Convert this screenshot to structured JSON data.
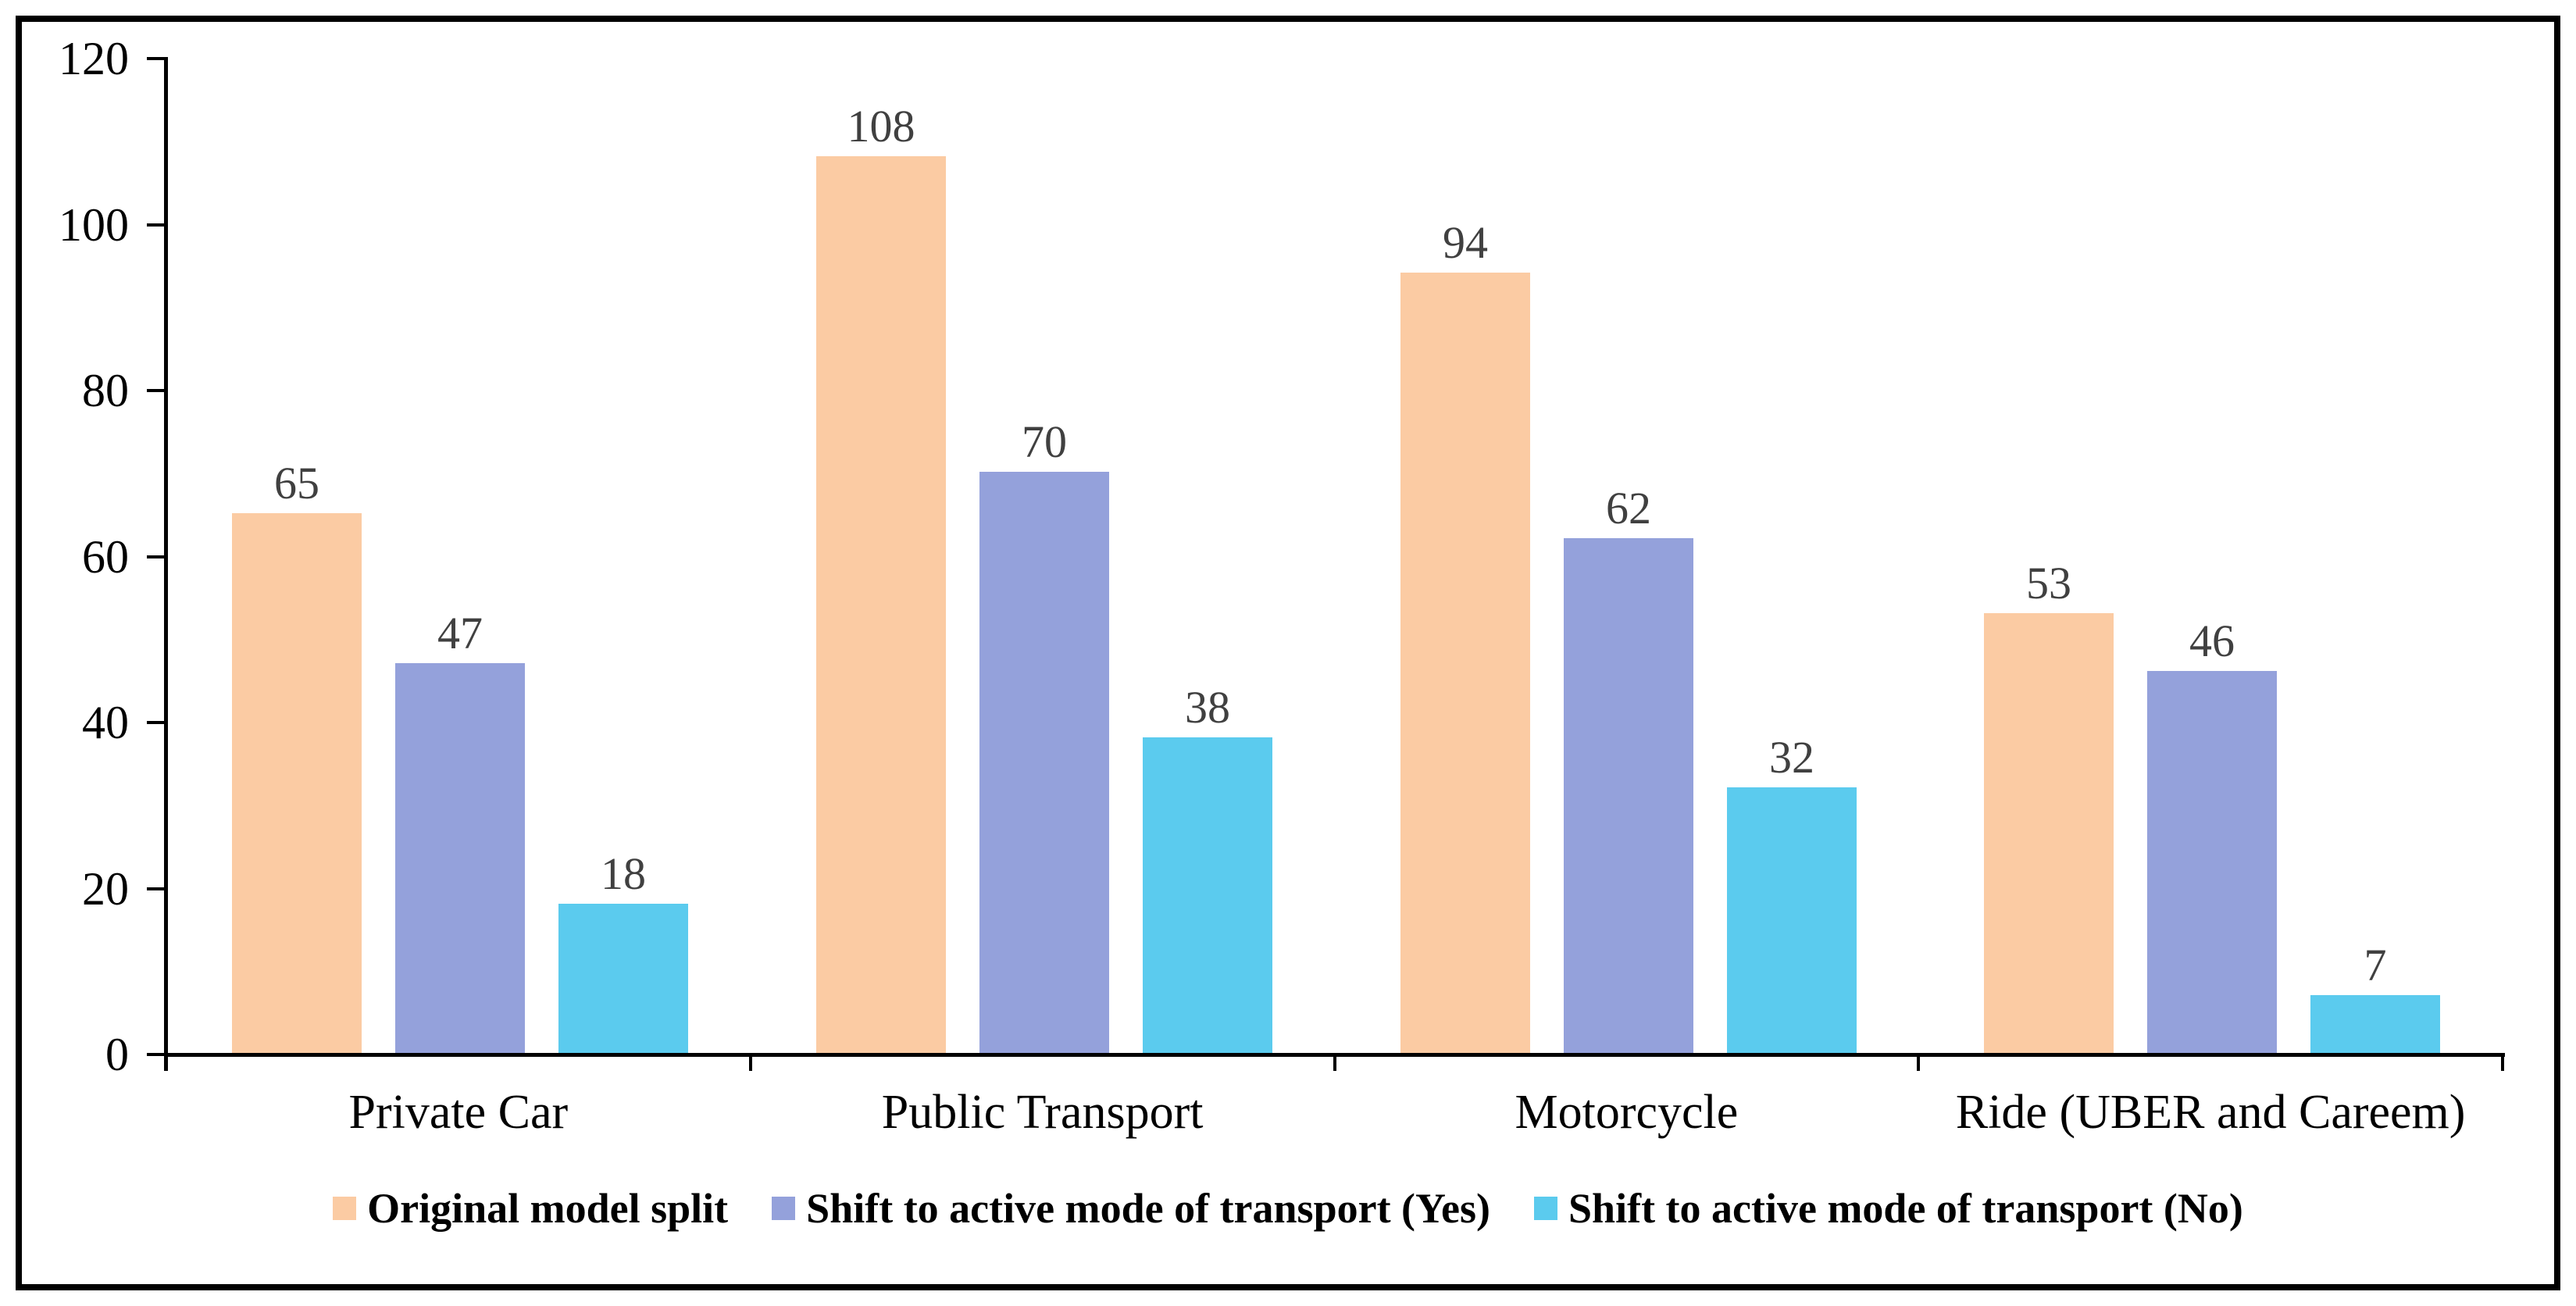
{
  "chart_data": {
    "type": "bar",
    "categories": [
      "Private Car",
      "Public Transport",
      "Motorcycle",
      "Ride (UBER and Careem)"
    ],
    "series": [
      {
        "name": "Original model split",
        "color": "#FBCBA3",
        "values": [
          65,
          108,
          94,
          53
        ]
      },
      {
        "name": "Shift to active mode of transport (Yes)",
        "color": "#94A1DB",
        "values": [
          47,
          70,
          62,
          46
        ]
      },
      {
        "name": "Shift to active mode of transport (No)",
        "color": "#5BCBEE",
        "values": [
          18,
          38,
          32,
          7
        ]
      }
    ],
    "ylim": [
      0,
      120
    ],
    "yticks": [
      0,
      20,
      40,
      60,
      80,
      100,
      120
    ],
    "ytick_labels": [
      "0",
      "20",
      "40",
      "60",
      "80",
      "100",
      "120"
    ],
    "xlabel": "",
    "ylabel": "",
    "title": "",
    "grid": "off",
    "legend_position": "bottom",
    "data_labels_shown": true,
    "data_label_color": "#404040",
    "axis_color": "#000000",
    "text_color": "#000000",
    "frame_color": "#000000",
    "background_color": "#ffffff"
  }
}
